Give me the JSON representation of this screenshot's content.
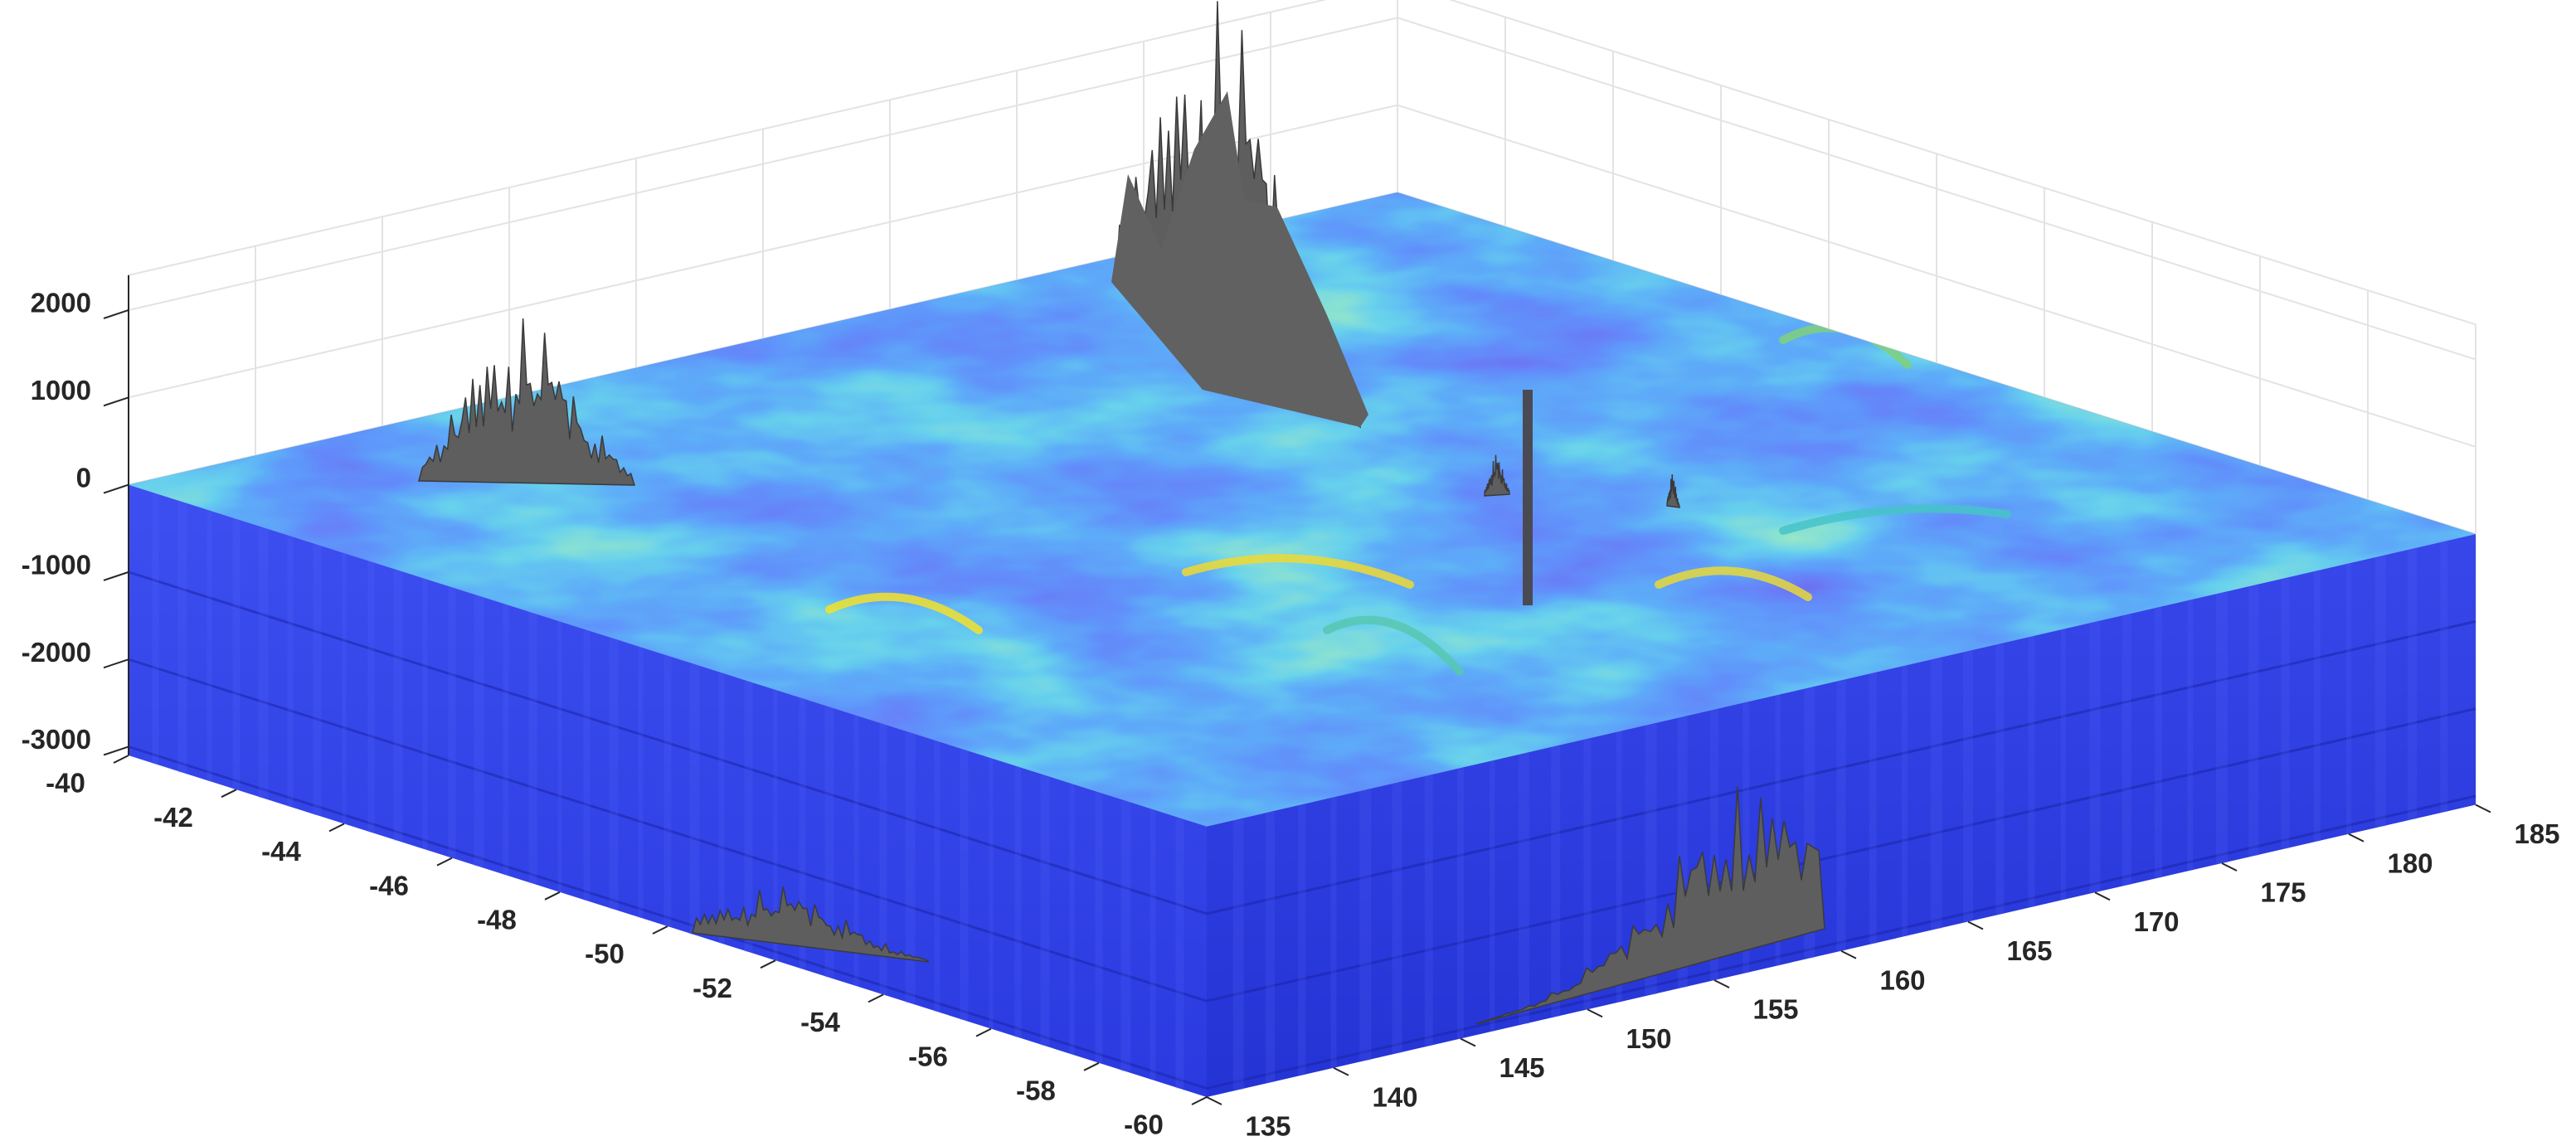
{
  "chart_data": {
    "type": "surface3d",
    "xlim": [
      135,
      185
    ],
    "xticks": [
      135,
      140,
      145,
      150,
      155,
      160,
      165,
      170,
      175,
      180,
      185
    ],
    "ylim": [
      -60,
      -40
    ],
    "yticks": [
      -60,
      -58,
      -56,
      -54,
      -52,
      -50,
      -48,
      -46,
      -44,
      -42,
      -40
    ],
    "zlim": [
      -3100,
      2400
    ],
    "zticks": [
      -3000,
      -2000,
      -1000,
      0,
      1000,
      2000
    ],
    "grid": true,
    "colormap": "parula"
  }
}
